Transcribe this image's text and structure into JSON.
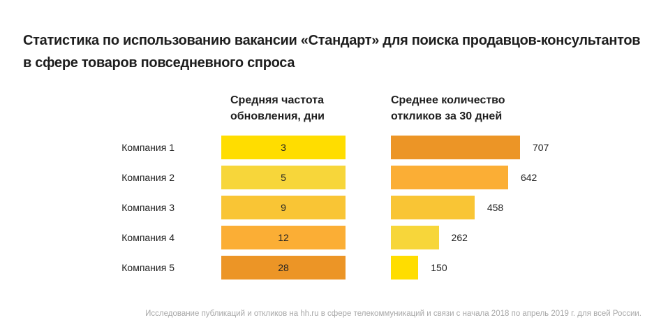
{
  "title_line1": "Статистика по использованию вакансии «Стандарт» для поиска продавцов-консультантов",
  "title_line2": "в сфере товаров повседневного спроса",
  "footnote": "Исследование публикаций и откликов на hh.ru в сфере телекоммуникаций и связи с начала 2018 по апрель 2019 г. для всей России.",
  "chart_data": [
    {
      "type": "bar",
      "orientation": "horizontal",
      "title_line1": "Средняя частота",
      "title_line2": "обновления, дни",
      "categories": [
        "Компания 1",
        "Компания 2",
        "Компания 3",
        "Компания 4",
        "Компания 5"
      ],
      "values": [
        3,
        5,
        9,
        12,
        28
      ],
      "colors": [
        "#FFDD00",
        "#F7D63A",
        "#F9C535",
        "#FBAE35",
        "#EC9526"
      ]
    },
    {
      "type": "bar",
      "orientation": "horizontal",
      "title_line1": "Среднее количество",
      "title_line2": "откликов за 30 дней",
      "categories": [
        "Компания 1",
        "Компания 2",
        "Компания 3",
        "Компания 4",
        "Компания 5"
      ],
      "values": [
        707,
        642,
        458,
        262,
        150
      ],
      "colors": [
        "#EC9526",
        "#FBAE35",
        "#F9C535",
        "#F7D63A",
        "#FFDD00"
      ]
    }
  ]
}
